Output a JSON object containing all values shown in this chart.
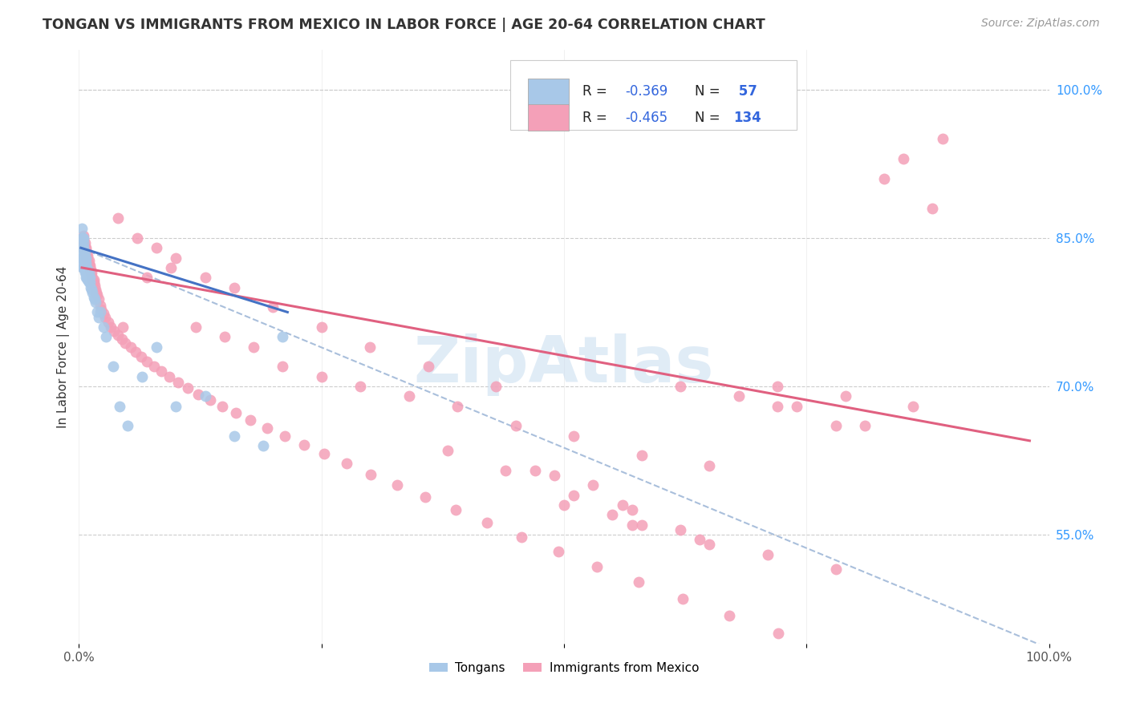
{
  "title": "TONGAN VS IMMIGRANTS FROM MEXICO IN LABOR FORCE | AGE 20-64 CORRELATION CHART",
  "source": "Source: ZipAtlas.com",
  "ylabel": "In Labor Force | Age 20-64",
  "xlim": [
    0.0,
    1.0
  ],
  "ylim": [
    0.44,
    1.04
  ],
  "ytick_labels_right": [
    "55.0%",
    "70.0%",
    "85.0%",
    "100.0%"
  ],
  "ytick_positions_right": [
    0.55,
    0.7,
    0.85,
    1.0
  ],
  "legend_R1": "-0.369",
  "legend_N1": "57",
  "legend_R2": "-0.465",
  "legend_N2": "134",
  "color_tongan": "#a8c8e8",
  "color_mexico": "#f4a0b8",
  "color_line_tongan": "#4472c4",
  "color_line_mexico": "#e06080",
  "color_dashed": "#a0b8d8",
  "background_color": "#ffffff",
  "grid_color": "#cccccc",
  "watermark_color": "#c8ddf0",
  "right_tick_color": "#3399ff",
  "title_color": "#333333",
  "source_color": "#999999",
  "tongan_x": [
    0.002,
    0.003,
    0.003,
    0.003,
    0.004,
    0.004,
    0.004,
    0.004,
    0.005,
    0.005,
    0.005,
    0.005,
    0.005,
    0.005,
    0.005,
    0.006,
    0.006,
    0.006,
    0.006,
    0.006,
    0.007,
    0.007,
    0.007,
    0.007,
    0.007,
    0.008,
    0.008,
    0.008,
    0.009,
    0.009,
    0.009,
    0.01,
    0.01,
    0.01,
    0.011,
    0.011,
    0.012,
    0.013,
    0.014,
    0.015,
    0.016,
    0.017,
    0.019,
    0.02,
    0.022,
    0.025,
    0.028,
    0.035,
    0.042,
    0.05,
    0.065,
    0.08,
    0.1,
    0.13,
    0.16,
    0.19,
    0.21
  ],
  "tongan_y": [
    0.83,
    0.84,
    0.85,
    0.86,
    0.82,
    0.83,
    0.84,
    0.85,
    0.82,
    0.825,
    0.83,
    0.835,
    0.84,
    0.845,
    0.85,
    0.815,
    0.82,
    0.825,
    0.83,
    0.835,
    0.81,
    0.815,
    0.82,
    0.825,
    0.83,
    0.81,
    0.815,
    0.82,
    0.808,
    0.813,
    0.818,
    0.805,
    0.81,
    0.815,
    0.805,
    0.81,
    0.8,
    0.798,
    0.795,
    0.79,
    0.788,
    0.785,
    0.775,
    0.77,
    0.775,
    0.76,
    0.75,
    0.72,
    0.68,
    0.66,
    0.71,
    0.74,
    0.68,
    0.69,
    0.65,
    0.64,
    0.75
  ],
  "mexico_x": [
    0.003,
    0.004,
    0.004,
    0.005,
    0.005,
    0.005,
    0.005,
    0.006,
    0.006,
    0.006,
    0.007,
    0.007,
    0.007,
    0.008,
    0.008,
    0.008,
    0.009,
    0.009,
    0.009,
    0.01,
    0.01,
    0.01,
    0.011,
    0.011,
    0.012,
    0.012,
    0.013,
    0.013,
    0.014,
    0.015,
    0.015,
    0.016,
    0.017,
    0.018,
    0.019,
    0.02,
    0.022,
    0.023,
    0.025,
    0.027,
    0.03,
    0.033,
    0.036,
    0.04,
    0.044,
    0.048,
    0.053,
    0.058,
    0.064,
    0.07,
    0.077,
    0.085,
    0.093,
    0.102,
    0.112,
    0.123,
    0.135,
    0.148,
    0.162,
    0.177,
    0.194,
    0.212,
    0.232,
    0.253,
    0.276,
    0.301,
    0.328,
    0.357,
    0.388,
    0.421,
    0.456,
    0.494,
    0.534,
    0.577,
    0.622,
    0.67,
    0.721,
    0.775,
    0.045,
    0.07,
    0.095,
    0.12,
    0.15,
    0.18,
    0.21,
    0.25,
    0.29,
    0.34,
    0.39,
    0.45,
    0.51,
    0.58,
    0.65,
    0.72,
    0.79,
    0.86,
    0.04,
    0.06,
    0.08,
    0.1,
    0.13,
    0.16,
    0.2,
    0.25,
    0.3,
    0.36,
    0.43,
    0.5,
    0.57,
    0.64,
    0.71,
    0.78,
    0.55,
    0.62,
    0.51,
    0.58,
    0.65,
    0.53,
    0.49,
    0.57,
    0.44,
    0.38,
    0.62,
    0.68,
    0.47,
    0.56,
    0.72,
    0.78,
    0.83,
    0.88,
    0.74,
    0.81,
    0.85,
    0.89
  ],
  "mexico_y": [
    0.84,
    0.845,
    0.85,
    0.84,
    0.845,
    0.848,
    0.852,
    0.835,
    0.84,
    0.845,
    0.83,
    0.835,
    0.84,
    0.828,
    0.832,
    0.836,
    0.825,
    0.828,
    0.832,
    0.82,
    0.823,
    0.827,
    0.818,
    0.822,
    0.815,
    0.818,
    0.812,
    0.815,
    0.808,
    0.805,
    0.808,
    0.802,
    0.798,
    0.795,
    0.792,
    0.788,
    0.782,
    0.778,
    0.774,
    0.77,
    0.765,
    0.76,
    0.756,
    0.752,
    0.748,
    0.744,
    0.74,
    0.735,
    0.73,
    0.725,
    0.72,
    0.715,
    0.71,
    0.704,
    0.698,
    0.692,
    0.686,
    0.68,
    0.673,
    0.666,
    0.658,
    0.65,
    0.641,
    0.632,
    0.622,
    0.611,
    0.6,
    0.588,
    0.575,
    0.562,
    0.548,
    0.533,
    0.518,
    0.502,
    0.485,
    0.468,
    0.45,
    0.432,
    0.76,
    0.81,
    0.82,
    0.76,
    0.75,
    0.74,
    0.72,
    0.71,
    0.7,
    0.69,
    0.68,
    0.66,
    0.65,
    0.63,
    0.62,
    0.7,
    0.69,
    0.68,
    0.87,
    0.85,
    0.84,
    0.83,
    0.81,
    0.8,
    0.78,
    0.76,
    0.74,
    0.72,
    0.7,
    0.58,
    0.56,
    0.545,
    0.53,
    0.515,
    0.57,
    0.555,
    0.59,
    0.56,
    0.54,
    0.6,
    0.61,
    0.575,
    0.615,
    0.635,
    0.7,
    0.69,
    0.615,
    0.58,
    0.68,
    0.66,
    0.91,
    0.88,
    0.68,
    0.66,
    0.93,
    0.95
  ],
  "tongan_line_x": [
    0.002,
    0.215
  ],
  "tongan_line_y": [
    0.84,
    0.775
  ],
  "mexico_line_x": [
    0.003,
    0.98
  ],
  "mexico_line_y": [
    0.82,
    0.645
  ],
  "dashed_line_x": [
    0.002,
    1.0
  ],
  "dashed_line_y": [
    0.84,
    0.435
  ]
}
